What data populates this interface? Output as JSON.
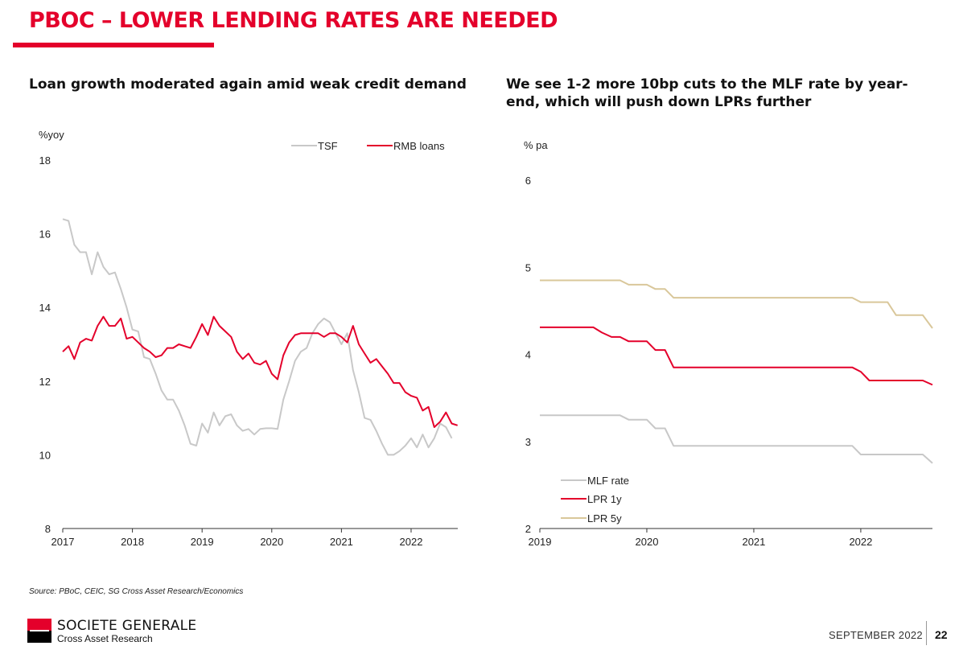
{
  "page": {
    "title": "PBOC – LOWER LENDING RATES ARE NEEDED",
    "source": "Source: PBoC, CEIC, SG Cross Asset Research/Economics",
    "logo_name": "SOCIETE GENERALE",
    "logo_sub": "Cross Asset Research",
    "date": "SEPTEMBER 2022",
    "page_number": "22"
  },
  "colors": {
    "accent": "#e4002b",
    "grey": "#c8c8c8",
    "gold": "#d9c79a"
  },
  "chart_data": [
    {
      "type": "line",
      "title": "Loan growth moderated again amid weak credit demand",
      "ylabel": "%yoy",
      "ylim": [
        8,
        18
      ],
      "yticks": [
        8,
        10,
        12,
        14,
        16,
        18
      ],
      "xlim": [
        2017.0,
        2022.67
      ],
      "xticks": [
        2017,
        2018,
        2019,
        2020,
        2021,
        2022
      ],
      "legend": "top",
      "series": [
        {
          "name": "TSF",
          "color": "#c8c8c8",
          "start": 2017.0,
          "step": 0.0833333,
          "values": [
            16.4,
            16.35,
            15.7,
            15.5,
            15.5,
            14.9,
            15.5,
            15.1,
            14.9,
            14.95,
            14.5,
            14.0,
            13.4,
            13.35,
            12.65,
            12.6,
            12.2,
            11.75,
            11.5,
            11.5,
            11.2,
            10.8,
            10.3,
            10.25,
            10.85,
            10.6,
            11.15,
            10.8,
            11.05,
            11.1,
            10.8,
            10.65,
            10.7,
            10.55,
            10.7,
            10.72,
            10.72,
            10.7,
            11.5,
            12.0,
            12.55,
            12.8,
            12.9,
            13.3,
            13.55,
            13.7,
            13.6,
            13.3,
            13.0,
            13.3,
            12.3,
            11.7,
            11.0,
            10.95,
            10.65,
            10.3,
            10.0,
            10.0,
            10.1,
            10.25,
            10.45,
            10.2,
            10.55,
            10.2,
            10.45,
            10.85,
            10.75,
            10.45
          ]
        },
        {
          "name": "RMB loans",
          "color": "#e4002b",
          "start": 2017.0,
          "step": 0.0833333,
          "values": [
            12.8,
            12.95,
            12.6,
            13.05,
            13.15,
            13.1,
            13.5,
            13.75,
            13.5,
            13.5,
            13.7,
            13.15,
            13.2,
            13.05,
            12.9,
            12.8,
            12.65,
            12.7,
            12.9,
            12.9,
            13.0,
            12.95,
            12.9,
            13.2,
            13.55,
            13.25,
            13.75,
            13.5,
            13.35,
            13.2,
            12.8,
            12.6,
            12.75,
            12.5,
            12.45,
            12.55,
            12.2,
            12.05,
            12.7,
            13.05,
            13.25,
            13.3,
            13.3,
            13.3,
            13.3,
            13.2,
            13.3,
            13.3,
            13.2,
            13.05,
            13.5,
            13.0,
            12.75,
            12.5,
            12.6,
            12.4,
            12.2,
            11.95,
            11.95,
            11.7,
            11.6,
            11.55,
            11.2,
            11.3,
            10.75,
            10.9,
            11.15,
            10.85,
            10.8
          ]
        }
      ]
    },
    {
      "type": "line",
      "title": "We see 1-2 more 10bp cuts to the MLF rate by year-end, which will push down LPRs further",
      "ylabel": "% pa",
      "ylim": [
        2,
        6
      ],
      "yticks": [
        2,
        3,
        4,
        5,
        6
      ],
      "xlim": [
        2019.0,
        2022.67
      ],
      "xticks": [
        2019,
        2020,
        2021,
        2022
      ],
      "legend": "bottom-left",
      "series": [
        {
          "name": "MLF rate",
          "color": "#c8c8c8",
          "points": [
            [
              2019.0,
              3.3
            ],
            [
              2019.75,
              3.3
            ],
            [
              2019.83,
              3.25
            ],
            [
              2020.0,
              3.25
            ],
            [
              2020.08,
              3.15
            ],
            [
              2020.17,
              3.15
            ],
            [
              2020.25,
              2.95
            ],
            [
              2021.92,
              2.95
            ],
            [
              2022.0,
              2.85
            ],
            [
              2022.58,
              2.85
            ],
            [
              2022.67,
              2.75
            ]
          ]
        },
        {
          "name": "LPR 1y",
          "color": "#e4002b",
          "points": [
            [
              2019.0,
              4.31
            ],
            [
              2019.5,
              4.31
            ],
            [
              2019.58,
              4.25
            ],
            [
              2019.67,
              4.2
            ],
            [
              2019.75,
              4.2
            ],
            [
              2019.83,
              4.15
            ],
            [
              2020.0,
              4.15
            ],
            [
              2020.08,
              4.05
            ],
            [
              2020.17,
              4.05
            ],
            [
              2020.25,
              3.85
            ],
            [
              2021.92,
              3.85
            ],
            [
              2022.0,
              3.8
            ],
            [
              2022.08,
              3.7
            ],
            [
              2022.58,
              3.7
            ],
            [
              2022.67,
              3.65
            ]
          ]
        },
        {
          "name": "LPR 5y",
          "color": "#d9c79a",
          "points": [
            [
              2019.0,
              4.85
            ],
            [
              2019.75,
              4.85
            ],
            [
              2019.83,
              4.8
            ],
            [
              2020.0,
              4.8
            ],
            [
              2020.08,
              4.75
            ],
            [
              2020.17,
              4.75
            ],
            [
              2020.25,
              4.65
            ],
            [
              2021.92,
              4.65
            ],
            [
              2022.0,
              4.6
            ],
            [
              2022.25,
              4.6
            ],
            [
              2022.33,
              4.45
            ],
            [
              2022.58,
              4.45
            ],
            [
              2022.67,
              4.3
            ]
          ]
        }
      ]
    }
  ]
}
